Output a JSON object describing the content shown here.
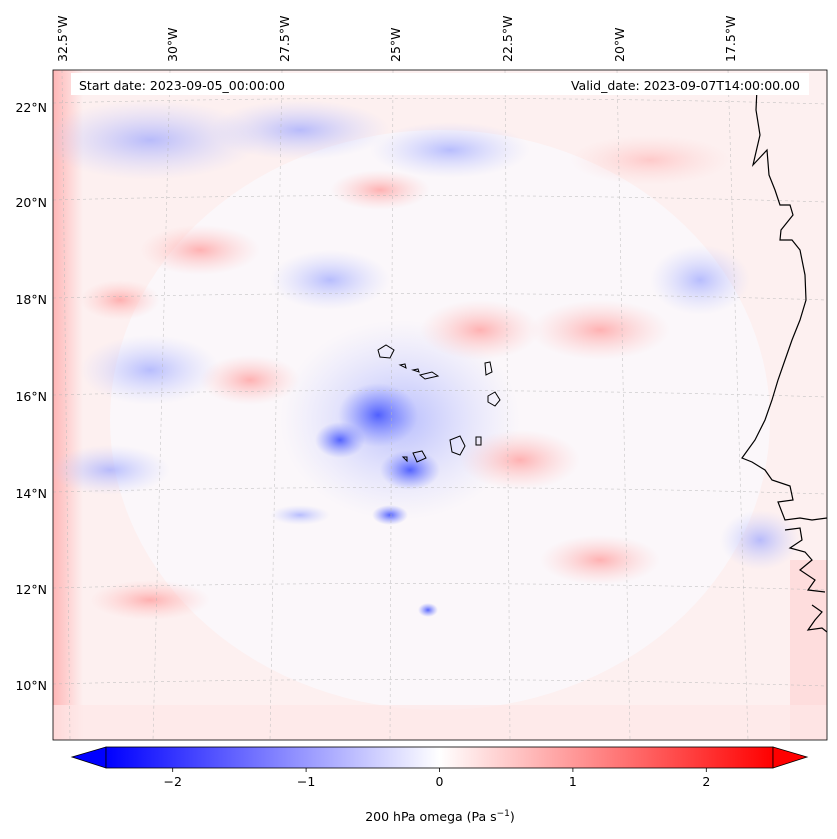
{
  "map": {
    "start_label": "Start date: 2023-09-05_00:00:00",
    "valid_label": "Valid_date: 2023-09-07T14:00:00.00",
    "lon_labels": [
      "32.5°W",
      "30°W",
      "27.5°W",
      "25°W",
      "22.5°W",
      "20°W",
      "17.5°W"
    ],
    "lat_labels": [
      "22°N",
      "20°N",
      "18°N",
      "16°N",
      "14°N",
      "12°N",
      "10°N"
    ]
  },
  "colorbar": {
    "label_prefix": "200 hPa omega (Pa s",
    "label_exp": "−1",
    "label_suffix": ")",
    "ticks": [
      "−2",
      "−1",
      "0",
      "1",
      "2"
    ],
    "tick_values": [
      -2,
      -1,
      0,
      1,
      2
    ],
    "vmin": -2.5,
    "vmax": 2.5,
    "colormap": "bwr",
    "low_color": "#0000ff",
    "mid_color": "#ffffff",
    "high_color": "#ff0000"
  }
}
